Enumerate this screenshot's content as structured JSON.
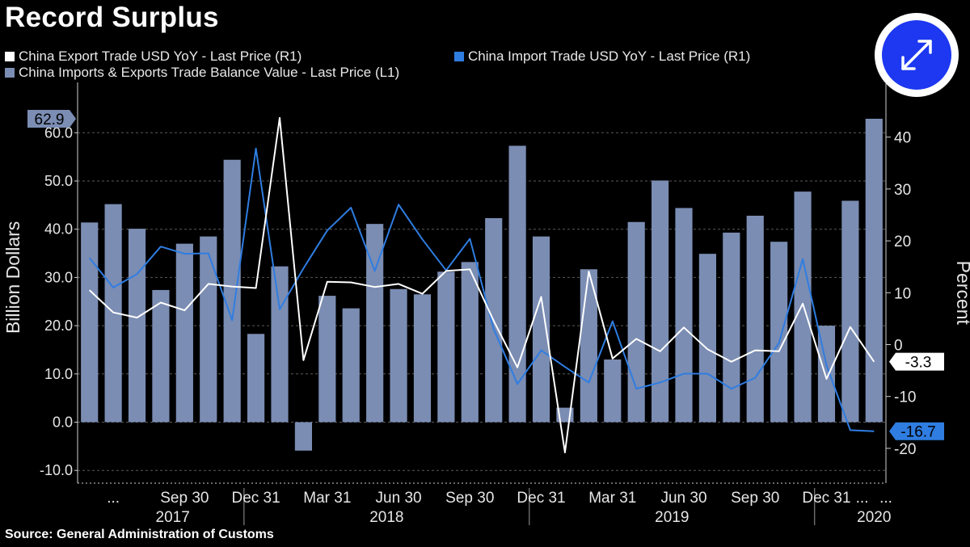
{
  "title": "Record Surplus",
  "legend": {
    "export_label": "China Export Trade USD YoY - Last Price (R1)",
    "import_label": "China Import Trade USD YoY - Last Price (R1)",
    "balance_label": "China Imports & Exports Trade Balance Value - Last Price (L1)"
  },
  "source": "Source: General Administration of Customs",
  "colors": {
    "export": "#ffffff",
    "import": "#2f7de1",
    "balance": "#7b8db3",
    "background": "#000000",
    "button": "#1d38f0"
  },
  "icons": {
    "expand_button": "expand-arrows-icon"
  },
  "chart_data": {
    "type": "bar",
    "grid": "horizontal dashed",
    "y_left": {
      "label": "Billion Dollars",
      "range": [
        -13,
        70
      ],
      "ticks": [
        "-10.0",
        "0.0",
        "10.0",
        "20.0",
        "30.0",
        "40.0",
        "50.0",
        "60.0"
      ],
      "tick_values": [
        -10,
        0,
        10,
        20,
        30,
        40,
        50,
        60
      ]
    },
    "y_right": {
      "label": "Percent",
      "range": [
        -27,
        52
      ],
      "ticks": [
        "-20",
        "-10",
        "0",
        "10",
        "20",
        "30",
        "40"
      ],
      "tick_values": [
        -20,
        -10,
        0,
        10,
        20,
        30,
        40
      ]
    },
    "x_tick_labels": [
      "...",
      "Sep 30",
      "Dec 31",
      "Mar 31",
      "Jun 30",
      "Sep 30",
      "Dec 31",
      "Mar 31",
      "Jun 30",
      "Sep 30",
      "Dec 31",
      "...",
      "..."
    ],
    "x_tick_index": [
      1,
      4,
      7,
      10,
      13,
      16,
      19,
      22,
      25,
      28,
      31,
      32.5,
      33.5
    ],
    "year_labels": [
      "2017",
      "2018",
      "2019",
      "2020"
    ],
    "year_center_index": [
      3.5,
      12.5,
      24.5,
      33
    ],
    "year_separators_index": [
      6.5,
      18.5,
      30.5
    ],
    "months": [
      "2017-05",
      "2017-06",
      "2017-07",
      "2017-08",
      "2017-09",
      "2017-10",
      "2017-11",
      "2017-12",
      "2018-01",
      "2018-02",
      "2018-03",
      "2018-04",
      "2018-05",
      "2018-06",
      "2018-07",
      "2018-08",
      "2018-09",
      "2018-10",
      "2018-11",
      "2018-12",
      "2019-01",
      "2019-02",
      "2019-03",
      "2019-04",
      "2019-05",
      "2019-06",
      "2019-07",
      "2019-08",
      "2019-09",
      "2019-10",
      "2019-11",
      "2019-12",
      "2020-01/02",
      "2020-03"
    ],
    "series": [
      {
        "name": "China Imports & Exports Trade Balance Value - Last Price (L1)",
        "axis": "left",
        "kind": "bar",
        "values": [
          41.4,
          45.2,
          40.1,
          27.4,
          37.0,
          38.5,
          54.4,
          18.3,
          32.3,
          -5.9,
          26.2,
          23.6,
          41.1,
          27.6,
          26.5,
          31.2,
          33.2,
          42.3,
          57.3,
          38.5,
          3.0,
          31.7,
          13.0,
          41.5,
          50.1,
          44.4,
          34.9,
          39.3,
          42.8,
          37.4,
          47.8,
          20.0,
          45.9,
          62.9
        ],
        "last_value_label": "62.9"
      },
      {
        "name": "China Export Trade USD YoY - Last Price (R1)",
        "axis": "right",
        "kind": "line",
        "values": [
          10.5,
          6.2,
          5.2,
          8.1,
          6.6,
          11.7,
          11.2,
          10.9,
          43.7,
          -3.0,
          12.1,
          12.0,
          11.1,
          11.7,
          9.8,
          14.2,
          14.5,
          4.6,
          -4.4,
          9.2,
          -20.8,
          14.1,
          -2.7,
          1.1,
          -1.3,
          3.3,
          -0.9,
          -3.3,
          -1.1,
          -1.3,
          7.9,
          -6.6,
          3.4,
          -3.3
        ],
        "last_value_label": "-3.3"
      },
      {
        "name": "China Import Trade USD YoY - Last Price (R1)",
        "axis": "right",
        "kind": "line",
        "values": [
          16.7,
          11.0,
          13.6,
          18.9,
          17.5,
          17.6,
          4.7,
          37.8,
          6.8,
          14.7,
          22.0,
          26.4,
          14.2,
          27.0,
          20.3,
          14.3,
          20.4,
          3.0,
          -7.6,
          -1.1,
          -4.3,
          -7.3,
          4.5,
          -8.5,
          -7.3,
          -5.6,
          -5.6,
          -8.5,
          -6.4,
          0.3,
          16.5,
          -4.0,
          -16.5,
          -16.7
        ],
        "last_value_label": "-16.7"
      }
    ]
  }
}
